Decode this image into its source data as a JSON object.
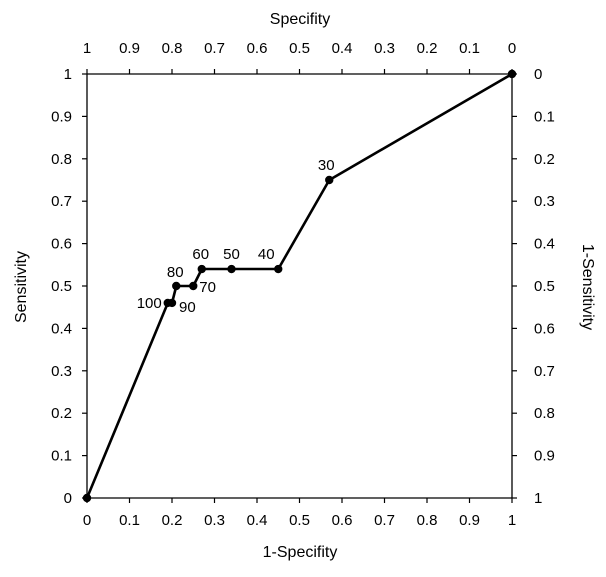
{
  "chart_data": {
    "type": "line",
    "title": "",
    "xlabel": "1-Specifity",
    "ylabel": "Sensitivity",
    "top_xlabel": "Specifity",
    "right_ylabel": "1-Sensitivity",
    "xlim": [
      0,
      1
    ],
    "ylim": [
      0,
      1
    ],
    "grid": false,
    "x_ticks": [
      "0",
      "0.1",
      "0.2",
      "0.3",
      "0.4",
      "0.5",
      "0.6",
      "0.7",
      "0.8",
      "0.9",
      "1"
    ],
    "y_ticks": [
      "0",
      "0.1",
      "0.2",
      "0.3",
      "0.4",
      "0.5",
      "0.6",
      "0.7",
      "0.8",
      "0.9",
      "1"
    ],
    "top_ticks": [
      "1",
      "0.9",
      "0.8",
      "0.7",
      "0.6",
      "0.5",
      "0.4",
      "0.3",
      "0.2",
      "0.1",
      "0"
    ],
    "right_ticks": [
      "1",
      "0.9",
      "0.8",
      "0.7",
      "0.6",
      "0.5",
      "0.4",
      "0.3",
      "0.2",
      "0.1",
      "0"
    ],
    "series": [
      {
        "points": [
          {
            "x": 0,
            "y": 0,
            "label": ""
          },
          {
            "x": 0.19,
            "y": 0.46,
            "label": "100"
          },
          {
            "x": 0.2,
            "y": 0.46,
            "label": "90"
          },
          {
            "x": 0.21,
            "y": 0.5,
            "label": "80"
          },
          {
            "x": 0.25,
            "y": 0.5,
            "label": "70"
          },
          {
            "x": 0.27,
            "y": 0.54,
            "label": "60"
          },
          {
            "x": 0.34,
            "y": 0.54,
            "label": "50"
          },
          {
            "x": 0.45,
            "y": 0.54,
            "label": "40"
          },
          {
            "x": 0.57,
            "y": 0.75,
            "label": "30"
          },
          {
            "x": 1,
            "y": 1,
            "label": ""
          }
        ]
      }
    ],
    "colors": {
      "line": "#000000",
      "points": "#000000",
      "background": "#ffffff"
    }
  }
}
